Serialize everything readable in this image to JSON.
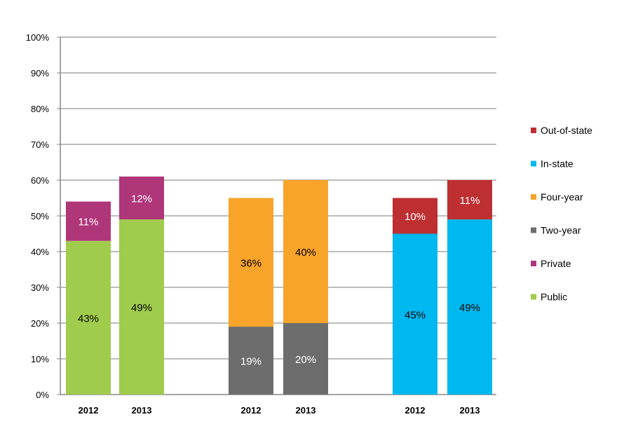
{
  "chart_data": {
    "type": "bar",
    "stacked": true,
    "categories": [
      "2012",
      "2013",
      "2012",
      "2013",
      "2012",
      "2013"
    ],
    "groups": [
      [
        0,
        1
      ],
      [
        2,
        3
      ],
      [
        4,
        5
      ]
    ],
    "yticks": [
      "0%",
      "10%",
      "20%",
      "30%",
      "40%",
      "50%",
      "60%",
      "70%",
      "80%",
      "90%",
      "100%"
    ],
    "ylim": [
      0,
      100
    ],
    "grid": true,
    "legend_position": "right",
    "series": [
      {
        "name": "Public",
        "color": "#a0cc4e",
        "label_color": "#000000",
        "values": [
          43,
          49,
          null,
          null,
          null,
          null
        ]
      },
      {
        "name": "Private",
        "color": "#b0367a",
        "label_color": "#ffffff",
        "values": [
          11,
          12,
          null,
          null,
          null,
          null
        ]
      },
      {
        "name": "Two-year",
        "color": "#6d6d6d",
        "label_color": "#ffffff",
        "values": [
          null,
          null,
          19,
          20,
          null,
          null
        ]
      },
      {
        "name": "Four-year",
        "color": "#f8a42a",
        "label_color": "#000000",
        "values": [
          null,
          null,
          36,
          40,
          null,
          null
        ]
      },
      {
        "name": "In-state",
        "color": "#00b8f0",
        "label_color": "#000000",
        "values": [
          null,
          null,
          null,
          null,
          45,
          49
        ]
      },
      {
        "name": "Out-of-state",
        "color": "#be2f31",
        "label_color": "#ffffff",
        "values": [
          null,
          null,
          null,
          null,
          10,
          11
        ]
      }
    ],
    "legend_order": [
      "Out-of-state",
      "In-state",
      "Four-year",
      "Two-year",
      "Private",
      "Public"
    ]
  }
}
